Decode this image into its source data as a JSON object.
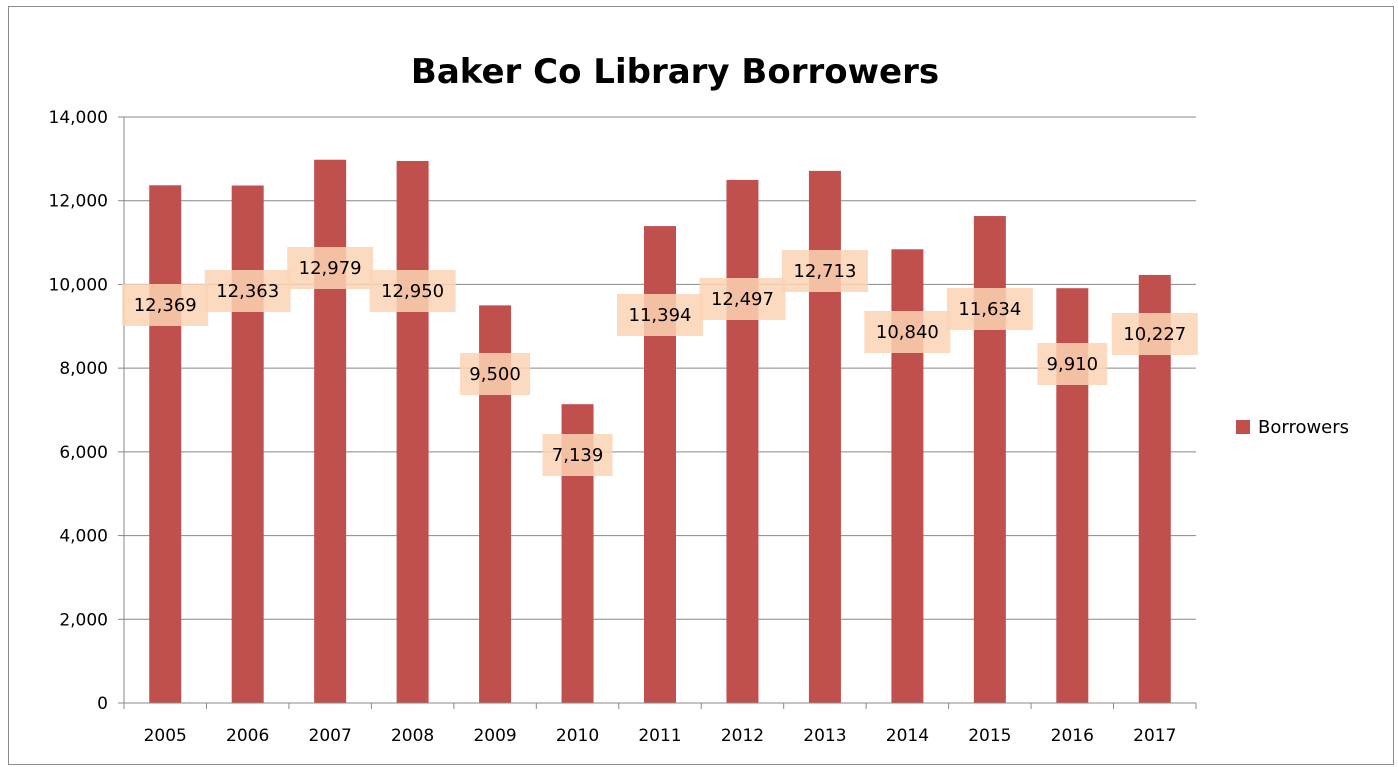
{
  "chart_data": {
    "type": "bar",
    "title": "Baker Co Library Borrowers",
    "xlabel": "",
    "ylabel": "",
    "categories": [
      "2005",
      "2006",
      "2007",
      "2008",
      "2009",
      "2010",
      "2011",
      "2012",
      "2013",
      "2014",
      "2015",
      "2016",
      "2017"
    ],
    "series": [
      {
        "name": "Borrowers",
        "color": "#c0504d",
        "values": [
          12369,
          12363,
          12979,
          12950,
          9500,
          7139,
          11394,
          12497,
          12713,
          10840,
          11634,
          9910,
          10227
        ],
        "labels": [
          "12,369",
          "12,363",
          "12,979",
          "12,950",
          "9,500",
          "7,139",
          "11,394",
          "12,497",
          "12,713",
          "10,840",
          "11,634",
          "9,910",
          "10,227"
        ]
      }
    ],
    "ylim": [
      0,
      14000
    ],
    "yticks": [
      0,
      2000,
      4000,
      6000,
      8000,
      10000,
      12000,
      14000
    ],
    "ytick_labels": [
      "0",
      "2,000",
      "4,000",
      "6,000",
      "8,000",
      "10,000",
      "12,000",
      "14,000"
    ],
    "grid": true,
    "legend_position": "right",
    "data_label_background": "#fbd4b4",
    "gridline_color": "#888888"
  }
}
